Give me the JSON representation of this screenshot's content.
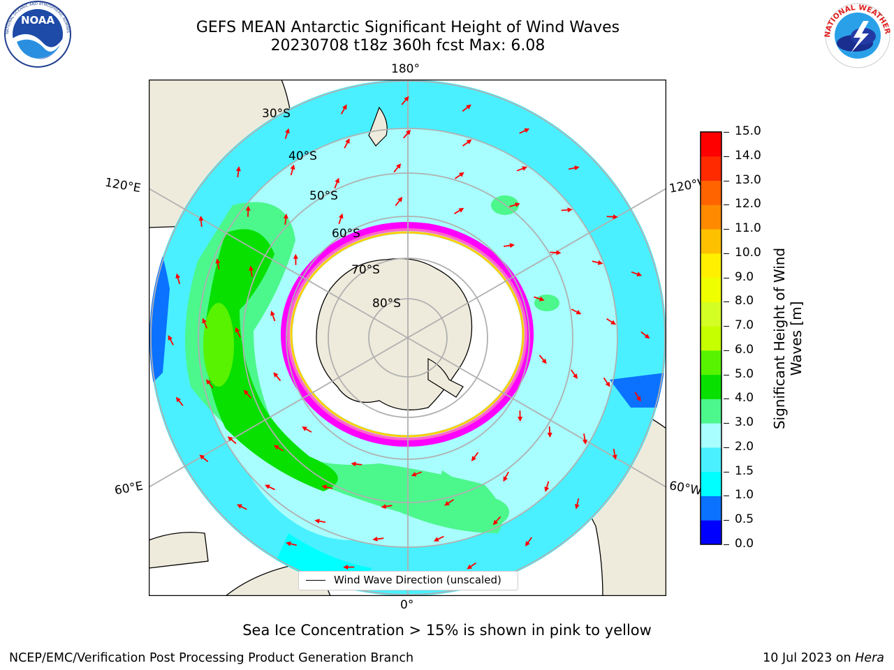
{
  "title": {
    "line1": "GEFS MEAN Antarctic Significant Height of Wind Waves",
    "line2": "20230708 t18z 360h fcst   Max: 6.08"
  },
  "logos": {
    "left": {
      "name": "noaa-logo",
      "text": "NOAA",
      "ring_text": "NATIONAL OCEANIC AND ATMOSPHERIC ADMINISTRATION · U.S. DEPARTMENT OF COMMERCE"
    },
    "right": {
      "name": "nws-logo",
      "ring_text": "NATIONAL WEATHER SERVICE"
    }
  },
  "map": {
    "projection": "south-polar-stereographic",
    "longitude_labels": {
      "top": "180°",
      "bottom": "0°",
      "left_upper": "120°E",
      "left_lower": "60°E",
      "right_upper": "120°W",
      "right_lower": "60°W"
    },
    "latitude_labels": [
      "30°S",
      "40°S",
      "50°S",
      "60°S",
      "70°S",
      "80°S"
    ],
    "legend": {
      "entry": "Wind Wave Direction (unscaled)",
      "arrow_color": "#ff0000"
    },
    "ice_colors": [
      "#ff00ff",
      "#ff66cc",
      "#ffcc00",
      "#ffff66"
    ],
    "land_color": "#efebdc"
  },
  "colorbar": {
    "label_line1": "Significant Height of Wind",
    "label_line2": "Waves [m]",
    "ticks": [
      "0.0",
      "0.5",
      "1.0",
      "1.5",
      "2.0",
      "3.0",
      "4.0",
      "5.0",
      "6.0",
      "7.0",
      "8.0",
      "9.0",
      "10.0",
      "11.0",
      "12.0",
      "13.0",
      "14.0",
      "15.0"
    ],
    "colors": [
      "#0000ff",
      "#0a72ff",
      "#00ffff",
      "#4af0ff",
      "#a8fdfe",
      "#4cf78c",
      "#08e000",
      "#57f300",
      "#c6ff00",
      "#d4ff24",
      "#f0ff00",
      "#fff000",
      "#ffc000",
      "#ff8a00",
      "#ff6400",
      "#ff2a00",
      "#ff0000"
    ]
  },
  "chart_data": {
    "type": "heatmap",
    "title": "GEFS MEAN Antarctic Significant Height of Wind Waves",
    "subtitle": "20230708 t18z 360h fcst   Max: 6.08",
    "colorbar_label": "Significant Height of Wind Waves [m]",
    "value_range": [
      0.0,
      15.0
    ],
    "max_value": 6.08,
    "overlay_note": "Sea Ice Concentration > 15% is shown in pink to yellow"
  },
  "caption": "Sea Ice Concentration > 15% is shown in pink to yellow",
  "footer": {
    "credit": "NCEP/EMC/Verification Post Processing Product Generation Branch",
    "date_prefix": "10 Jul 2023 on ",
    "date_machine": "Hera"
  }
}
